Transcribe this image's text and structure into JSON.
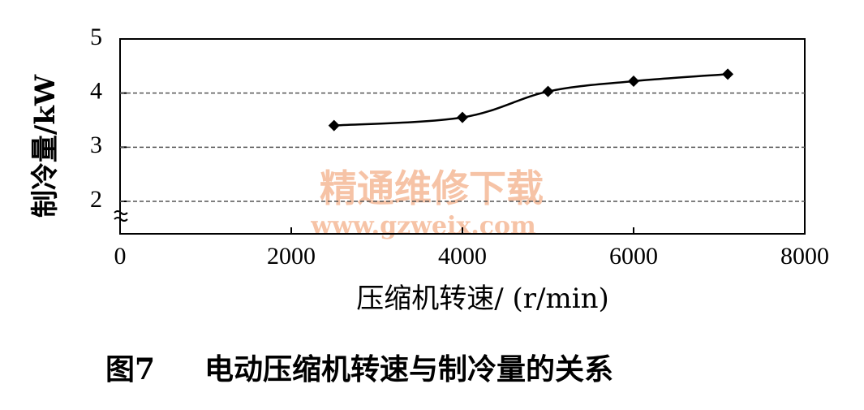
{
  "chart_data": {
    "type": "line",
    "figure_label": "图7",
    "title": "电动压缩机转速与制冷量的关系",
    "x_label": "压缩机转速/ (r/min)",
    "y_label": "制冷量/kW",
    "watermark": [
      "精通维修下载",
      "www.gzweix.com"
    ],
    "x": [
      2500,
      4000,
      5000,
      6000,
      7100
    ],
    "series": [
      {
        "name": "制冷量",
        "color": "#000000",
        "values": [
          3.4,
          3.55,
          4.03,
          4.22,
          4.35
        ]
      }
    ],
    "xlim": [
      0,
      8000
    ],
    "xticks": [
      0,
      2000,
      4000,
      6000,
      8000
    ],
    "ylim": [
      1.4,
      5
    ],
    "yticks": [
      2,
      3,
      4,
      5
    ],
    "grid": true
  }
}
